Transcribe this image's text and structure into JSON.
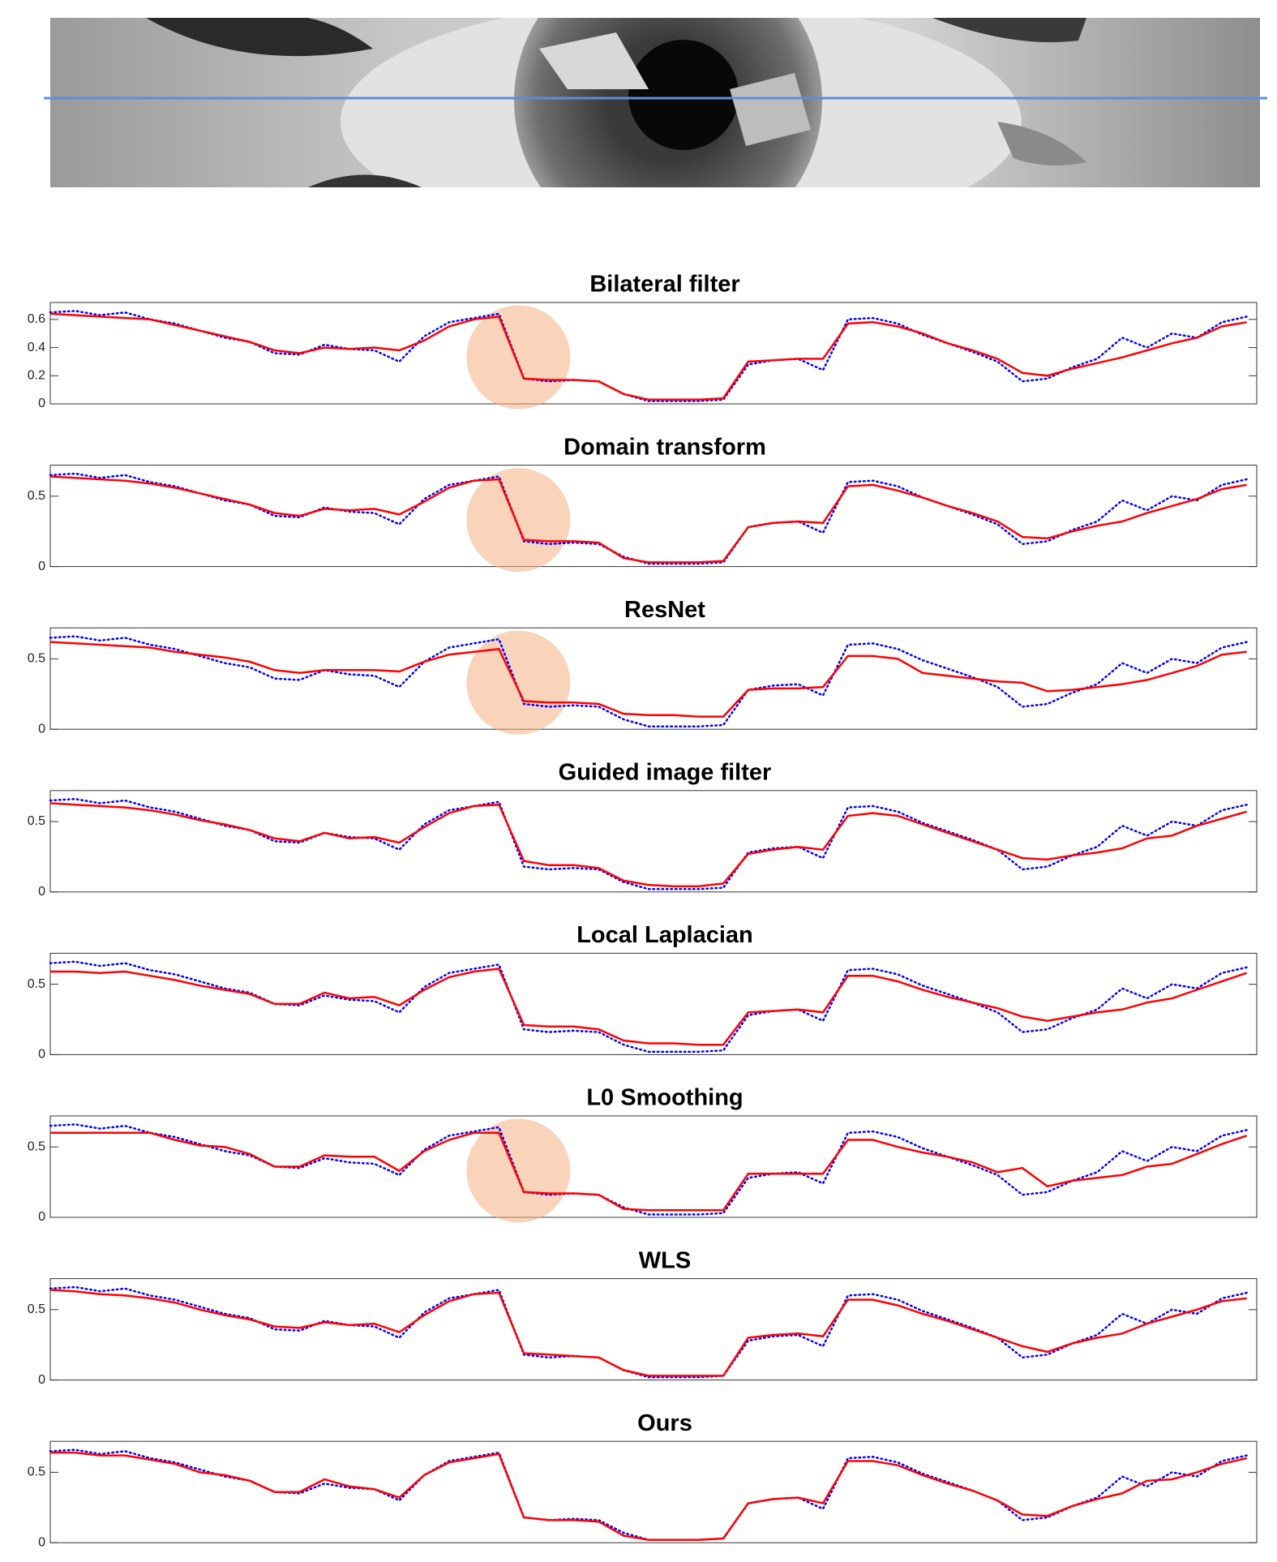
{
  "chart_data": [
    {
      "type": "line",
      "title": "Bilateral filter",
      "ylim": [
        0,
        0.72
      ],
      "yticks": [
        0,
        0.2,
        0.4,
        0.6
      ],
      "highlight": true,
      "series": [
        {
          "color": "#0000ff",
          "dash": "dotted",
          "values": [
            0.65,
            0.66,
            0.63,
            0.65,
            0.6,
            0.57,
            0.52,
            0.47,
            0.44,
            0.36,
            0.35,
            0.42,
            0.39,
            0.38,
            0.3,
            0.48,
            0.58,
            0.61,
            0.64,
            0.18,
            0.16,
            0.17,
            0.16,
            0.07,
            0.02,
            0.02,
            0.02,
            0.03,
            0.28,
            0.31,
            0.32,
            0.24,
            0.6,
            0.61,
            0.57,
            0.49,
            0.43,
            0.37,
            0.3,
            0.16,
            0.18,
            0.26,
            0.32,
            0.47,
            0.4,
            0.5,
            0.47,
            0.58,
            0.62
          ]
        },
        {
          "color": "#ff0000",
          "dash": "solid",
          "values": [
            0.64,
            0.63,
            0.62,
            0.61,
            0.6,
            0.56,
            0.52,
            0.48,
            0.44,
            0.38,
            0.36,
            0.4,
            0.39,
            0.4,
            0.38,
            0.45,
            0.55,
            0.6,
            0.62,
            0.18,
            0.17,
            0.17,
            0.16,
            0.07,
            0.03,
            0.03,
            0.03,
            0.04,
            0.3,
            0.31,
            0.32,
            0.32,
            0.57,
            0.58,
            0.55,
            0.5,
            0.43,
            0.38,
            0.32,
            0.22,
            0.2,
            0.25,
            0.29,
            0.33,
            0.38,
            0.43,
            0.47,
            0.55,
            0.58
          ]
        }
      ]
    },
    {
      "type": "line",
      "title": "Domain transform",
      "ylim": [
        0,
        0.72
      ],
      "yticks": [
        0,
        0.5
      ],
      "highlight": true,
      "series": [
        {
          "color": "#0000ff",
          "dash": "dotted",
          "values": [
            0.65,
            0.66,
            0.63,
            0.65,
            0.6,
            0.57,
            0.52,
            0.47,
            0.44,
            0.36,
            0.35,
            0.42,
            0.39,
            0.38,
            0.3,
            0.48,
            0.58,
            0.61,
            0.64,
            0.18,
            0.16,
            0.17,
            0.16,
            0.07,
            0.02,
            0.02,
            0.02,
            0.03,
            0.28,
            0.31,
            0.32,
            0.24,
            0.6,
            0.61,
            0.57,
            0.49,
            0.43,
            0.37,
            0.3,
            0.16,
            0.18,
            0.26,
            0.32,
            0.47,
            0.4,
            0.5,
            0.47,
            0.58,
            0.62
          ]
        },
        {
          "color": "#ff0000",
          "dash": "solid",
          "values": [
            0.64,
            0.63,
            0.62,
            0.61,
            0.59,
            0.56,
            0.52,
            0.48,
            0.44,
            0.38,
            0.36,
            0.41,
            0.4,
            0.41,
            0.37,
            0.46,
            0.56,
            0.61,
            0.62,
            0.19,
            0.18,
            0.18,
            0.17,
            0.06,
            0.03,
            0.03,
            0.03,
            0.04,
            0.28,
            0.31,
            0.32,
            0.31,
            0.57,
            0.58,
            0.54,
            0.49,
            0.43,
            0.38,
            0.32,
            0.21,
            0.2,
            0.25,
            0.29,
            0.32,
            0.38,
            0.43,
            0.48,
            0.55,
            0.58
          ]
        }
      ]
    },
    {
      "type": "line",
      "title": "ResNet",
      "ylim": [
        0,
        0.72
      ],
      "yticks": [
        0,
        0.5
      ],
      "highlight": true,
      "series": [
        {
          "color": "#0000ff",
          "dash": "dotted",
          "values": [
            0.65,
            0.66,
            0.63,
            0.65,
            0.6,
            0.57,
            0.52,
            0.47,
            0.44,
            0.36,
            0.35,
            0.42,
            0.39,
            0.38,
            0.3,
            0.48,
            0.58,
            0.61,
            0.64,
            0.18,
            0.16,
            0.17,
            0.16,
            0.07,
            0.02,
            0.02,
            0.02,
            0.03,
            0.28,
            0.31,
            0.32,
            0.24,
            0.6,
            0.61,
            0.57,
            0.49,
            0.43,
            0.37,
            0.3,
            0.16,
            0.18,
            0.26,
            0.32,
            0.47,
            0.4,
            0.5,
            0.47,
            0.58,
            0.62
          ]
        },
        {
          "color": "#ff0000",
          "dash": "solid",
          "values": [
            0.62,
            0.61,
            0.6,
            0.59,
            0.58,
            0.55,
            0.53,
            0.51,
            0.48,
            0.42,
            0.4,
            0.42,
            0.42,
            0.42,
            0.41,
            0.48,
            0.53,
            0.55,
            0.57,
            0.2,
            0.19,
            0.19,
            0.18,
            0.11,
            0.1,
            0.1,
            0.09,
            0.09,
            0.28,
            0.29,
            0.29,
            0.3,
            0.52,
            0.52,
            0.5,
            0.4,
            0.38,
            0.36,
            0.34,
            0.33,
            0.27,
            0.28,
            0.3,
            0.32,
            0.35,
            0.4,
            0.45,
            0.53,
            0.55
          ]
        }
      ]
    },
    {
      "type": "line",
      "title": "Guided image filter",
      "ylim": [
        0,
        0.72
      ],
      "yticks": [
        0,
        0.5
      ],
      "highlight": false,
      "series": [
        {
          "color": "#0000ff",
          "dash": "dotted",
          "values": [
            0.65,
            0.66,
            0.63,
            0.65,
            0.6,
            0.57,
            0.52,
            0.47,
            0.44,
            0.36,
            0.35,
            0.42,
            0.39,
            0.38,
            0.3,
            0.48,
            0.58,
            0.61,
            0.64,
            0.18,
            0.16,
            0.17,
            0.16,
            0.07,
            0.02,
            0.02,
            0.02,
            0.03,
            0.28,
            0.31,
            0.32,
            0.24,
            0.6,
            0.61,
            0.57,
            0.49,
            0.43,
            0.37,
            0.3,
            0.16,
            0.18,
            0.26,
            0.32,
            0.47,
            0.4,
            0.5,
            0.47,
            0.58,
            0.62
          ]
        },
        {
          "color": "#ff0000",
          "dash": "solid",
          "values": [
            0.63,
            0.62,
            0.61,
            0.6,
            0.58,
            0.55,
            0.51,
            0.48,
            0.44,
            0.38,
            0.36,
            0.42,
            0.38,
            0.39,
            0.35,
            0.46,
            0.56,
            0.61,
            0.62,
            0.22,
            0.19,
            0.19,
            0.17,
            0.08,
            0.05,
            0.04,
            0.04,
            0.06,
            0.27,
            0.3,
            0.32,
            0.3,
            0.54,
            0.56,
            0.54,
            0.48,
            0.42,
            0.36,
            0.3,
            0.24,
            0.23,
            0.26,
            0.28,
            0.31,
            0.38,
            0.4,
            0.47,
            0.52,
            0.57
          ]
        }
      ]
    },
    {
      "type": "line",
      "title": "Local Laplacian",
      "ylim": [
        0,
        0.72
      ],
      "yticks": [
        0,
        0.5
      ],
      "highlight": false,
      "series": [
        {
          "color": "#0000ff",
          "dash": "dotted",
          "values": [
            0.65,
            0.66,
            0.63,
            0.65,
            0.6,
            0.57,
            0.52,
            0.47,
            0.44,
            0.36,
            0.35,
            0.42,
            0.39,
            0.38,
            0.3,
            0.48,
            0.58,
            0.61,
            0.64,
            0.18,
            0.16,
            0.17,
            0.16,
            0.07,
            0.02,
            0.02,
            0.02,
            0.03,
            0.28,
            0.31,
            0.32,
            0.24,
            0.6,
            0.61,
            0.57,
            0.49,
            0.43,
            0.37,
            0.3,
            0.16,
            0.18,
            0.26,
            0.32,
            0.47,
            0.4,
            0.5,
            0.47,
            0.58,
            0.62
          ]
        },
        {
          "color": "#ff0000",
          "dash": "solid",
          "values": [
            0.59,
            0.59,
            0.58,
            0.59,
            0.56,
            0.53,
            0.49,
            0.46,
            0.43,
            0.36,
            0.36,
            0.44,
            0.4,
            0.41,
            0.35,
            0.46,
            0.55,
            0.59,
            0.61,
            0.21,
            0.2,
            0.2,
            0.18,
            0.1,
            0.08,
            0.08,
            0.07,
            0.07,
            0.3,
            0.31,
            0.32,
            0.3,
            0.56,
            0.56,
            0.52,
            0.46,
            0.41,
            0.37,
            0.33,
            0.27,
            0.24,
            0.27,
            0.3,
            0.32,
            0.37,
            0.4,
            0.46,
            0.52,
            0.58
          ]
        }
      ]
    },
    {
      "type": "line",
      "title": "L0 Smoothing",
      "ylim": [
        0,
        0.72
      ],
      "yticks": [
        0,
        0.5
      ],
      "highlight": true,
      "series": [
        {
          "color": "#0000ff",
          "dash": "dotted",
          "values": [
            0.65,
            0.66,
            0.63,
            0.65,
            0.6,
            0.57,
            0.52,
            0.47,
            0.44,
            0.36,
            0.35,
            0.42,
            0.39,
            0.38,
            0.3,
            0.48,
            0.58,
            0.61,
            0.64,
            0.18,
            0.16,
            0.17,
            0.16,
            0.07,
            0.02,
            0.02,
            0.02,
            0.03,
            0.28,
            0.31,
            0.32,
            0.24,
            0.6,
            0.61,
            0.57,
            0.49,
            0.43,
            0.37,
            0.3,
            0.16,
            0.18,
            0.26,
            0.32,
            0.47,
            0.4,
            0.5,
            0.47,
            0.58,
            0.62
          ]
        },
        {
          "color": "#ff0000",
          "dash": "solid",
          "values": [
            0.6,
            0.6,
            0.6,
            0.6,
            0.6,
            0.55,
            0.51,
            0.5,
            0.45,
            0.36,
            0.36,
            0.44,
            0.43,
            0.43,
            0.33,
            0.47,
            0.55,
            0.6,
            0.6,
            0.18,
            0.17,
            0.17,
            0.16,
            0.06,
            0.05,
            0.05,
            0.05,
            0.05,
            0.31,
            0.31,
            0.31,
            0.31,
            0.55,
            0.55,
            0.5,
            0.46,
            0.43,
            0.39,
            0.32,
            0.35,
            0.22,
            0.26,
            0.28,
            0.3,
            0.36,
            0.38,
            0.45,
            0.52,
            0.58
          ]
        }
      ]
    },
    {
      "type": "line",
      "title": "WLS",
      "ylim": [
        0,
        0.72
      ],
      "yticks": [
        0,
        0.5
      ],
      "highlight": false,
      "series": [
        {
          "color": "#0000ff",
          "dash": "dotted",
          "values": [
            0.65,
            0.66,
            0.63,
            0.65,
            0.6,
            0.57,
            0.52,
            0.47,
            0.44,
            0.36,
            0.35,
            0.42,
            0.39,
            0.38,
            0.3,
            0.48,
            0.58,
            0.61,
            0.64,
            0.18,
            0.16,
            0.17,
            0.16,
            0.07,
            0.02,
            0.02,
            0.02,
            0.03,
            0.28,
            0.31,
            0.32,
            0.24,
            0.6,
            0.61,
            0.57,
            0.49,
            0.43,
            0.37,
            0.3,
            0.16,
            0.18,
            0.26,
            0.32,
            0.47,
            0.4,
            0.5,
            0.47,
            0.58,
            0.62
          ]
        },
        {
          "color": "#ff0000",
          "dash": "solid",
          "values": [
            0.64,
            0.63,
            0.61,
            0.6,
            0.58,
            0.55,
            0.5,
            0.46,
            0.43,
            0.38,
            0.37,
            0.41,
            0.39,
            0.4,
            0.34,
            0.46,
            0.56,
            0.61,
            0.62,
            0.19,
            0.18,
            0.17,
            0.16,
            0.07,
            0.03,
            0.03,
            0.03,
            0.03,
            0.3,
            0.32,
            0.33,
            0.31,
            0.57,
            0.57,
            0.53,
            0.47,
            0.42,
            0.36,
            0.3,
            0.24,
            0.2,
            0.26,
            0.3,
            0.33,
            0.4,
            0.45,
            0.5,
            0.56,
            0.58
          ]
        }
      ]
    },
    {
      "type": "line",
      "title": "Ours",
      "ylim": [
        0,
        0.72
      ],
      "yticks": [
        0,
        0.5
      ],
      "highlight": false,
      "series": [
        {
          "color": "#0000ff",
          "dash": "dotted",
          "values": [
            0.65,
            0.66,
            0.63,
            0.65,
            0.6,
            0.57,
            0.52,
            0.47,
            0.44,
            0.36,
            0.35,
            0.42,
            0.39,
            0.38,
            0.3,
            0.48,
            0.58,
            0.61,
            0.64,
            0.18,
            0.16,
            0.17,
            0.16,
            0.07,
            0.02,
            0.02,
            0.02,
            0.03,
            0.28,
            0.31,
            0.32,
            0.24,
            0.6,
            0.61,
            0.57,
            0.49,
            0.43,
            0.37,
            0.3,
            0.16,
            0.18,
            0.26,
            0.32,
            0.47,
            0.4,
            0.5,
            0.47,
            0.58,
            0.62
          ]
        },
        {
          "color": "#ff0000",
          "dash": "solid",
          "values": [
            0.64,
            0.64,
            0.62,
            0.62,
            0.59,
            0.56,
            0.5,
            0.48,
            0.44,
            0.36,
            0.36,
            0.45,
            0.4,
            0.38,
            0.32,
            0.48,
            0.57,
            0.6,
            0.63,
            0.18,
            0.16,
            0.16,
            0.15,
            0.05,
            0.02,
            0.02,
            0.02,
            0.03,
            0.28,
            0.31,
            0.32,
            0.28,
            0.58,
            0.58,
            0.55,
            0.48,
            0.42,
            0.37,
            0.3,
            0.2,
            0.19,
            0.26,
            0.31,
            0.35,
            0.44,
            0.45,
            0.5,
            0.56,
            0.6
          ]
        }
      ]
    }
  ]
}
